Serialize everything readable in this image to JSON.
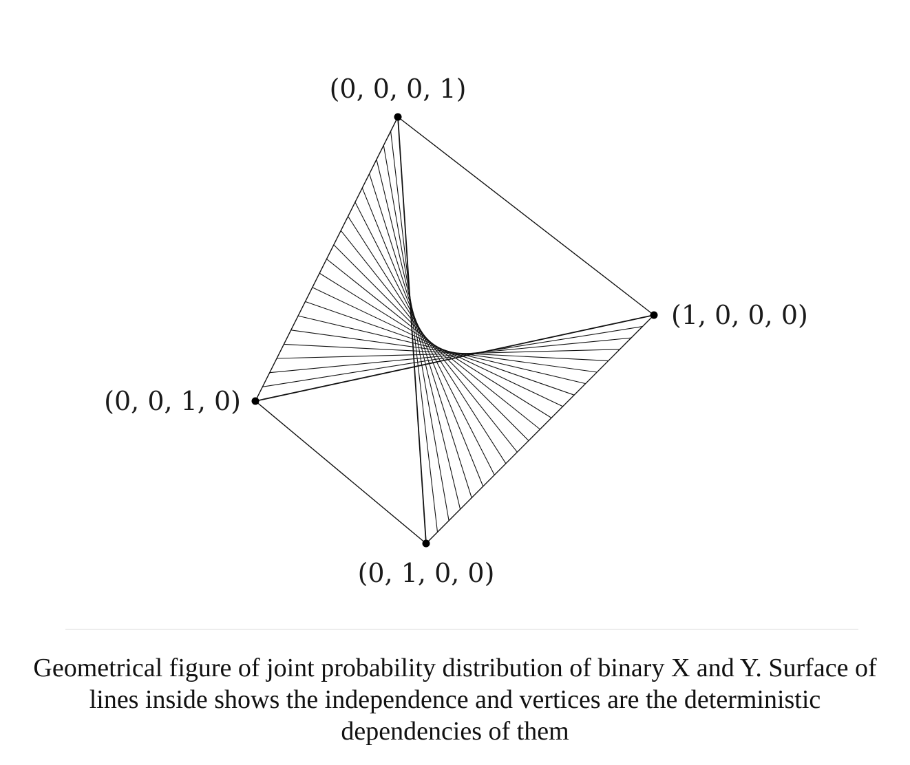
{
  "diagram": {
    "vertices": [
      {
        "id": "top",
        "label": "(0, 0, 0, 1)"
      },
      {
        "id": "right",
        "label": "(1, 0, 0, 0)"
      },
      {
        "id": "left",
        "label": "(0, 0, 1, 0)"
      },
      {
        "id": "bottom",
        "label": "(0, 1, 0, 0)"
      }
    ],
    "line_count": 21,
    "line_color": "#111111"
  },
  "caption": "Geometrical figure of joint probability distribution of binary X and Y. Surface of lines inside shows the independence and vertices are the deterministic dependencies of them"
}
